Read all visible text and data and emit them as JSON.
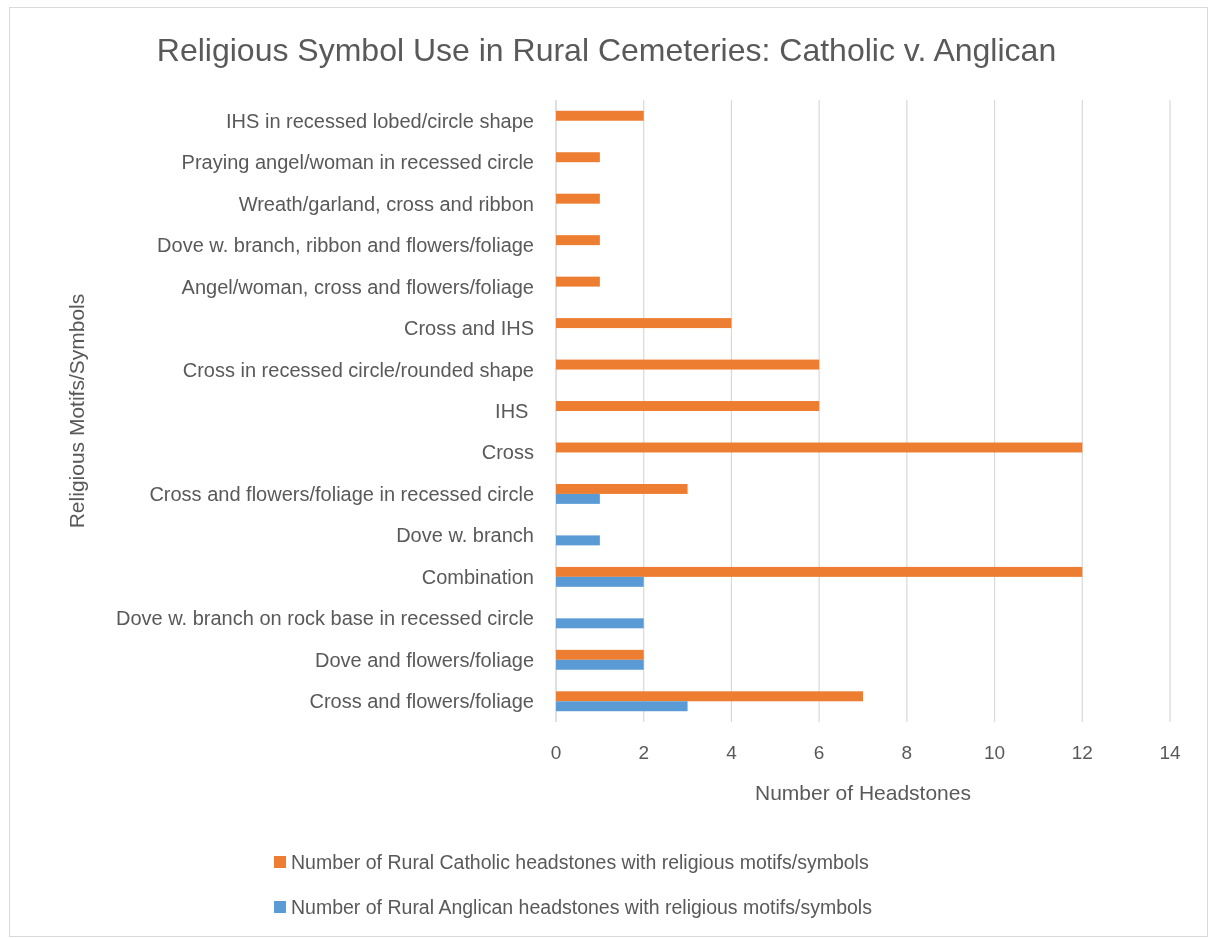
{
  "chart_data": {
    "type": "bar",
    "orientation": "horizontal",
    "title": "Religious Symbol Use in Rural Cemeteries: Catholic v. Anglican",
    "xlabel": "Number of Headstones",
    "ylabel": "Religious Motifs/Symbols",
    "categories": [
      "IHS in recessed lobed/circle shape",
      "Praying angel/woman in recessed circle",
      "Wreath/garland, cross and ribbon",
      "Dove w. branch, ribbon and flowers/foliage",
      "Angel/woman, cross and flowers/foliage",
      "Cross and IHS",
      "Cross in recessed circle/rounded shape",
      "IHS ",
      "Cross",
      "Cross and flowers/foliage in recessed circle",
      "Dove w. branch",
      "Combination",
      "Dove w. branch on rock base in recessed circle",
      "Dove and flowers/foliage",
      "Cross and flowers/foliage"
    ],
    "series": [
      {
        "name": "Number of Rural Catholic headstones with religious motifs/symbols",
        "color": "#ed7d31",
        "values": [
          2,
          1,
          1,
          1,
          1,
          4,
          6,
          6,
          12,
          3,
          null,
          12,
          null,
          2,
          7
        ]
      },
      {
        "name": "Number of Rural Anglican headstones with religious motifs/symbols",
        "color": "#5b9bd5",
        "values": [
          null,
          null,
          null,
          null,
          null,
          null,
          null,
          null,
          null,
          1,
          1,
          2,
          2,
          2,
          3
        ]
      }
    ],
    "xlim": [
      0,
      14
    ],
    "xticks": [
      0,
      2,
      4,
      6,
      8,
      10,
      12,
      14
    ],
    "grid": "x",
    "legend": "bottom"
  }
}
